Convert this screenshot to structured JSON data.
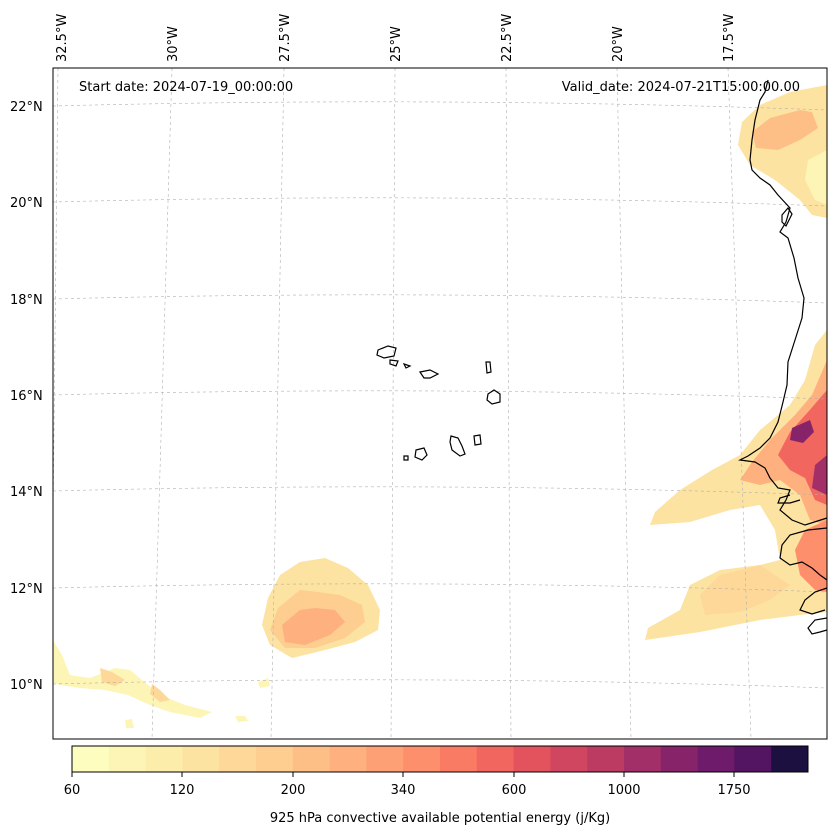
{
  "map": {
    "start_date": "Start date: 2024-07-19_00:00:00",
    "valid_date": "Valid_date: 2024-07-21T15:00:00.00",
    "lon_labels": [
      "32.5°W",
      "30°W",
      "27.5°W",
      "25°W",
      "22.5°W",
      "20°W",
      "17.5°W"
    ],
    "lat_labels": [
      "22°N",
      "20°N",
      "18°N",
      "16°N",
      "14°N",
      "12°N",
      "10°N"
    ]
  },
  "colorbar": {
    "title": "925 hPa convective available potential energy (j/Kg)",
    "tick_labels": [
      "60",
      "120",
      "200",
      "340",
      "600",
      "1000",
      "1750"
    ],
    "colors": [
      "#fcfdbf",
      "#fdf5b5",
      "#fdedab",
      "#fde3a1",
      "#fed898",
      "#fecd90",
      "#febf87",
      "#feb07e",
      "#fea076",
      "#fe8f6c",
      "#f97b64",
      "#f1665f",
      "#e3535d",
      "#d04660",
      "#bc3b63",
      "#a22f67",
      "#872469",
      "#6d1b6a",
      "#531462",
      "#1c1040"
    ]
  },
  "colors": {
    "coastline": "#000000",
    "grid": "#b0b0b0"
  }
}
